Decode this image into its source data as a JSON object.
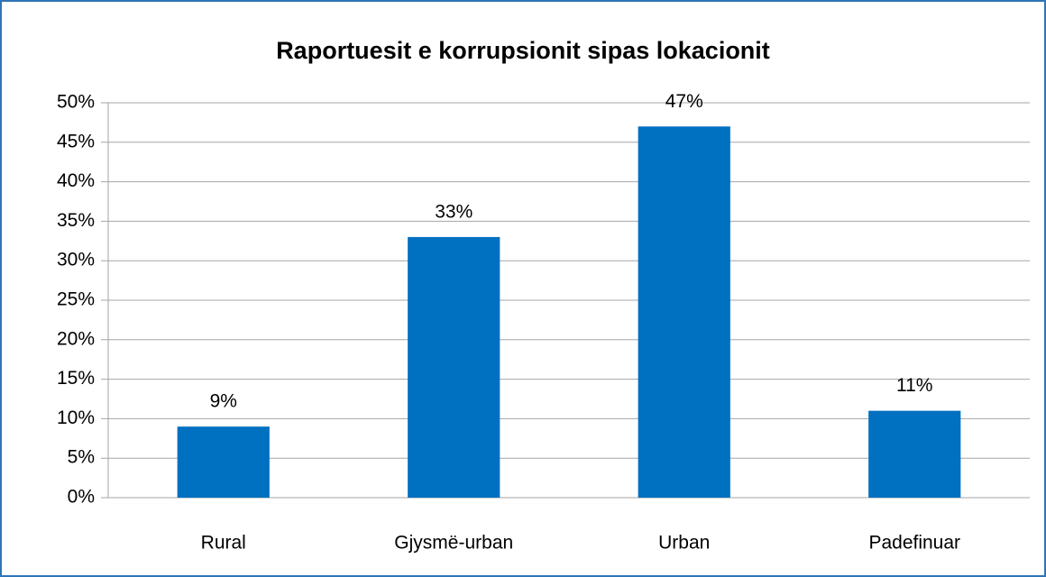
{
  "chart_data": {
    "type": "bar",
    "title": "Raportuesit e korrupsionit sipas lokacionit",
    "categories": [
      "Rural",
      "Gjysmë-urban",
      "Urban",
      "Padefinuar"
    ],
    "values": [
      9,
      33,
      47,
      11
    ],
    "value_labels": [
      "9%",
      "33%",
      "47%",
      "11%"
    ],
    "color": "#0070c0",
    "ylim": [
      0,
      50
    ],
    "yticks": [
      {
        "value": 0,
        "label": "0%"
      },
      {
        "value": 5,
        "label": "5%"
      },
      {
        "value": 10,
        "label": "10%"
      },
      {
        "value": 15,
        "label": "15%"
      },
      {
        "value": 20,
        "label": "20%"
      },
      {
        "value": 25,
        "label": "25%"
      },
      {
        "value": 30,
        "label": "30%"
      },
      {
        "value": 35,
        "label": "35%"
      },
      {
        "value": 40,
        "label": "40%"
      },
      {
        "value": 45,
        "label": "45%"
      },
      {
        "value": 50,
        "label": "50%"
      }
    ],
    "grid": true
  }
}
